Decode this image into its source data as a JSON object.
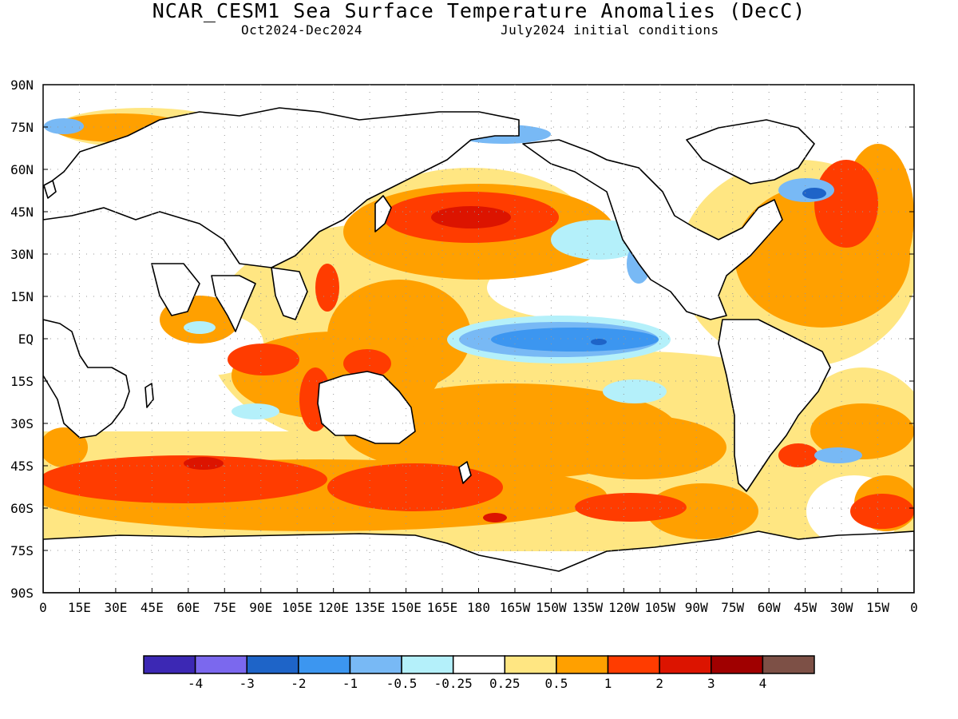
{
  "header": {
    "title": "NCAR_CESM1 Sea Surface Temperature Anomalies (DecC)",
    "period": "Oct2024-Dec2024",
    "init": "July2024 initial conditions"
  },
  "map": {
    "lat_labels": [
      "90N",
      "75N",
      "60N",
      "45N",
      "30N",
      "15N",
      "EQ",
      "15S",
      "30S",
      "45S",
      "60S",
      "75S",
      "90S"
    ],
    "lon_labels": [
      "0",
      "15E",
      "30E",
      "45E",
      "60E",
      "75E",
      "90E",
      "105E",
      "120E",
      "135E",
      "150E",
      "165E",
      "180",
      "165W",
      "150W",
      "135W",
      "120W",
      "105W",
      "90W",
      "75W",
      "60W",
      "45W",
      "30W",
      "15W",
      "0"
    ]
  },
  "colorbar": {
    "colors": [
      "#3c28b4",
      "#7b68ee",
      "#1e64c8",
      "#3c96f0",
      "#78b9f5",
      "#b4f0fa",
      "#ffffff",
      "#ffe682",
      "#ffa000",
      "#ff3c00",
      "#dc1400",
      "#a00000",
      "#7d5046"
    ],
    "labels": [
      "-4",
      "-3",
      "-2",
      "-1",
      "-0.5",
      "-0.25",
      "0.25",
      "0.5",
      "1",
      "2",
      "3",
      "4"
    ]
  },
  "palette": {
    "light_orange": "#ffe682",
    "orange": "#ffa000",
    "red_orange": "#ff3c00",
    "red": "#dc1400",
    "dark_red": "#a00000",
    "light_cyan": "#b4f0fa",
    "light_blue": "#78b9f5",
    "blue": "#3c96f0",
    "deep_blue": "#1e64c8",
    "coastline": "#000000"
  }
}
